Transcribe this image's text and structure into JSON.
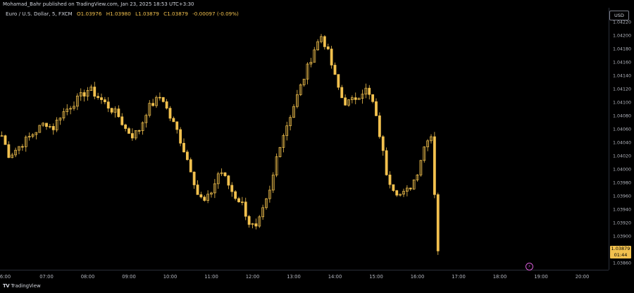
{
  "header": {
    "published": "Mohamad_Bahr published on TradingView.com, Jan 23, 2025 18:53 UTC+3:30"
  },
  "legend": {
    "symbol": "Euro / U.S. Dollar, 5, FXCM",
    "open": "O1.03976",
    "high": "H1.03980",
    "low": "L1.03879",
    "close": "C1.03879",
    "change": "-0.00097 (-0.09%)"
  },
  "price_axis": {
    "currency": "USD",
    "last_price": "1.03879",
    "countdown": "01:44"
  },
  "footer": {
    "brand": "TradingView",
    "logo": "tv-logo-icon"
  },
  "colors": {
    "up": "#f2c14e",
    "down": "#f2c14e",
    "background": "#000000",
    "grid": "#1a1a1a"
  },
  "chart_data": {
    "type": "candlestick",
    "symbol": "Euro / U.S. Dollar, 5, FXCM",
    "x_ticks": [
      "6:00",
      "07:00",
      "08:00",
      "09:00",
      "10:00",
      "11:00",
      "12:00",
      "13:00",
      "14:00",
      "15:00",
      "16:00",
      "17:00",
      "18:00",
      "19:00",
      "20:00"
    ],
    "y_ticks": [
      "1.04220",
      "1.04200",
      "1.04180",
      "1.04160",
      "1.04140",
      "1.04120",
      "1.04100",
      "1.04080",
      "1.04060",
      "1.04040",
      "1.04020",
      "1.04000",
      "1.03980",
      "1.03960",
      "1.03940",
      "1.03920",
      "1.03900",
      "1.03860"
    ],
    "ylim": [
      1.0385,
      1.0423
    ],
    "close_path": [
      1.0405,
      1.0402,
      1.0403,
      1.0404,
      1.0405,
      1.0406,
      1.0407,
      1.0406,
      1.0408,
      1.0409,
      1.041,
      1.0411,
      1.0412,
      1.0411,
      1.041,
      1.0409,
      1.0408,
      1.0406,
      1.0405,
      1.0406,
      1.0409,
      1.041,
      1.0411,
      1.0408,
      1.0406,
      1.0403,
      1.04,
      1.0396,
      1.0395,
      1.0397,
      1.04,
      1.0398,
      1.0396,
      1.0395,
      1.0392,
      1.0391,
      1.0394,
      1.0397,
      1.0403,
      1.0406,
      1.0409,
      1.0412,
      1.0415,
      1.0418,
      1.042,
      1.0417,
      1.0413,
      1.041,
      1.041,
      1.0411,
      1.0412,
      1.041,
      1.0405,
      1.0399,
      1.0397,
      1.0396,
      1.0397,
      1.0399,
      1.0403,
      1.0406,
      1.0388
    ],
    "x_start_time": "5:55",
    "bar_minutes": 5
  }
}
